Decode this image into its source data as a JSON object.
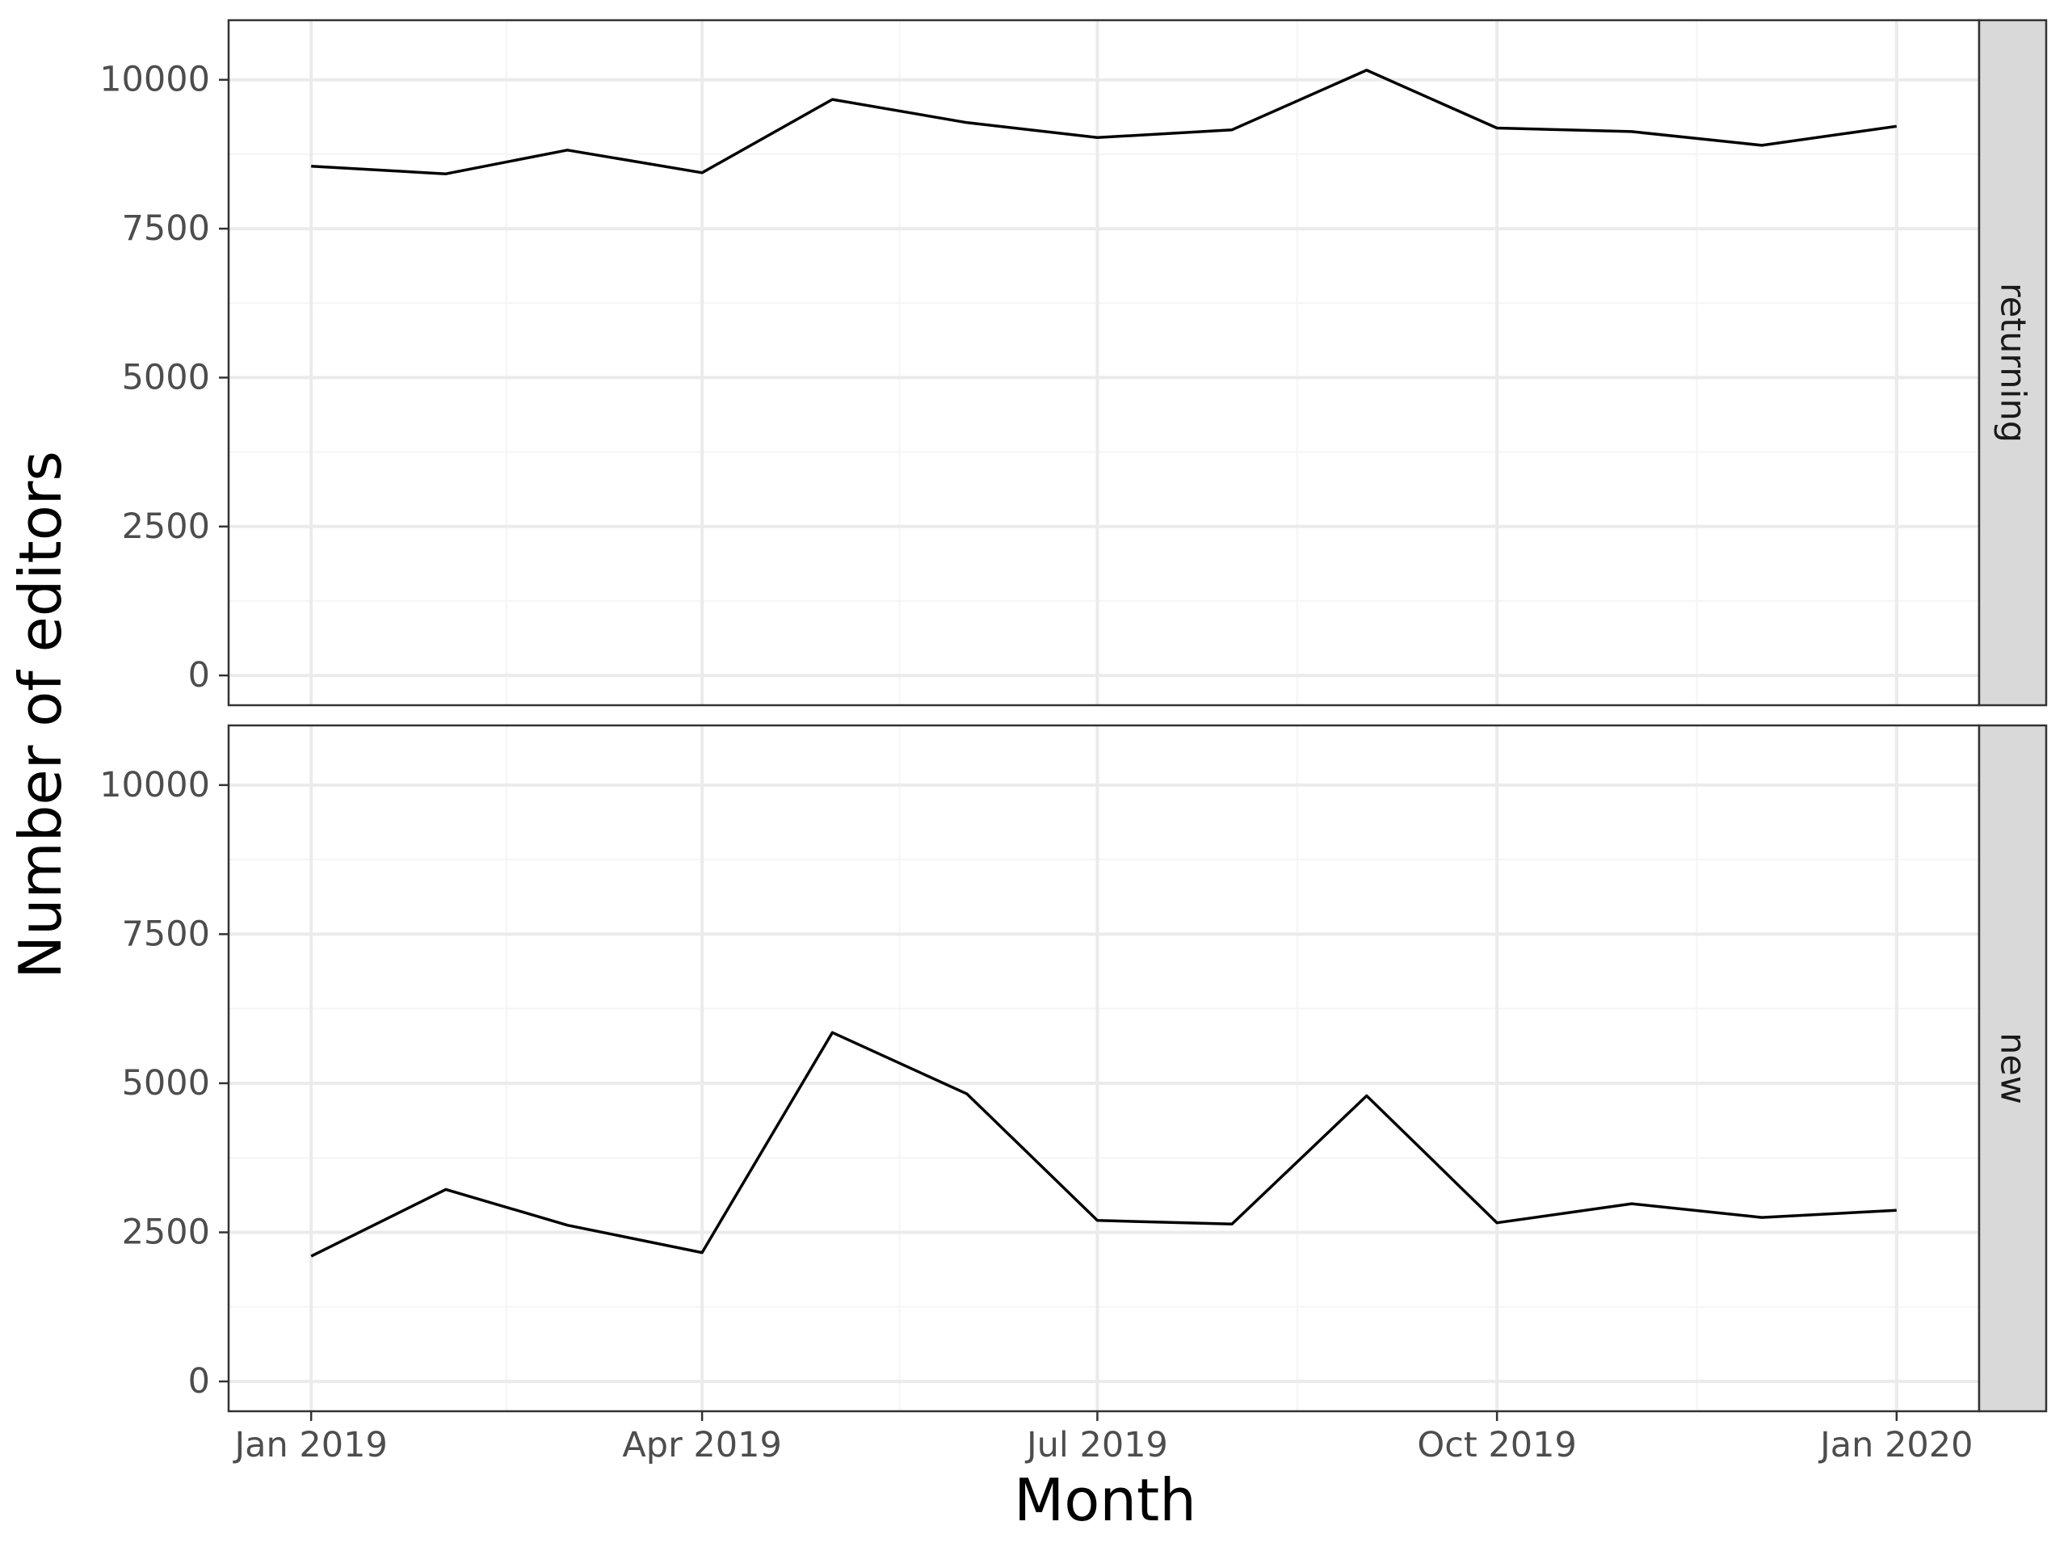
{
  "chart_data": {
    "type": "line",
    "layout": "facet-rows",
    "xlabel": "Month",
    "ylabel": "Number of editors",
    "x_tick_labels": [
      "Jan 2019",
      "Apr 2019",
      "Jul 2019",
      "Oct 2019",
      "Jan 2020"
    ],
    "x_tick_dates": [
      "2019-01-01",
      "2019-04-01",
      "2019-07-01",
      "2019-10-01",
      "2020-01-01"
    ],
    "xlim": [
      "2018-12-13",
      "2020-01-20"
    ],
    "y_ticks": [
      0,
      2500,
      5000,
      7500,
      10000
    ],
    "ylim": [
      -500,
      11000
    ],
    "grid": true,
    "x": [
      "2019-01-01",
      "2019-02-01",
      "2019-03-01",
      "2019-04-01",
      "2019-05-01",
      "2019-06-01",
      "2019-07-01",
      "2019-08-01",
      "2019-09-01",
      "2019-10-01",
      "2019-11-01",
      "2019-12-01",
      "2020-01-01"
    ],
    "panels": [
      {
        "strip_label": "returning",
        "values": [
          8550,
          8420,
          8820,
          8440,
          9670,
          9280,
          9030,
          9160,
          10160,
          9190,
          9130,
          8900,
          9220
        ]
      },
      {
        "strip_label": "new",
        "values": [
          2100,
          3220,
          2620,
          2160,
          5850,
          4820,
          2700,
          2640,
          4790,
          2660,
          2980,
          2750,
          2870
        ]
      }
    ],
    "colors": {
      "line": "#000000",
      "panel_border": "#333333",
      "grid_major": "#ebebeb",
      "grid_minor": "#f5f5f5",
      "strip_fill": "#d9d9d9"
    }
  }
}
